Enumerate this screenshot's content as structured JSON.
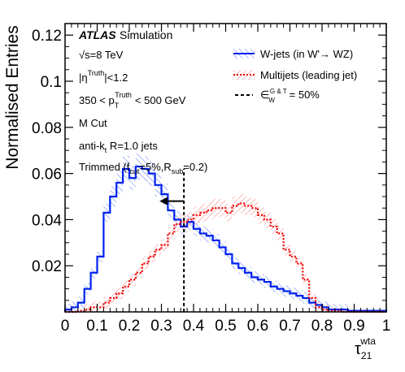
{
  "chart_data": {
    "type": "histogram",
    "ylabel": "Normalised Entries",
    "xlabel": "τ21wta",
    "xlim": [
      0,
      1
    ],
    "ylim": [
      0,
      0.125
    ],
    "x_tick_labels": [
      "0",
      "0.1",
      "0.2",
      "0.3",
      "0.4",
      "0.5",
      "0.6",
      "0.7",
      "0.8",
      "0.9",
      "1"
    ],
    "y_tick_labels": [
      "0.02",
      "0.04",
      "0.06",
      "0.08",
      "0.1",
      "0.12"
    ],
    "x_ticks": [
      0,
      0.1,
      0.2,
      0.3,
      0.4,
      0.5,
      0.6,
      0.7,
      0.8,
      0.9,
      1.0
    ],
    "y_ticks": [
      0.02,
      0.04,
      0.06,
      0.08,
      0.1,
      0.12
    ],
    "bin_edges": [
      0,
      0.02,
      0.04,
      0.06,
      0.08,
      0.1,
      0.12,
      0.14,
      0.16,
      0.18,
      0.2,
      0.22,
      0.24,
      0.26,
      0.28,
      0.3,
      0.32,
      0.34,
      0.36,
      0.38,
      0.4,
      0.42,
      0.44,
      0.46,
      0.48,
      0.5,
      0.52,
      0.54,
      0.56,
      0.58,
      0.6,
      0.62,
      0.64,
      0.66,
      0.68,
      0.7,
      0.72,
      0.74,
      0.76,
      0.78,
      0.8,
      0.82,
      0.84,
      0.86,
      0.88,
      0.9,
      0.92,
      0.94,
      0.96,
      0.98,
      1.0
    ],
    "series": [
      {
        "name": "W-jets (in W'→ WZ)",
        "color": "#0022ee",
        "style": "solid",
        "values": [
          0.001,
          0.002,
          0.004,
          0.01,
          0.017,
          0.024,
          0.043,
          0.05,
          0.056,
          0.062,
          0.058,
          0.063,
          0.062,
          0.06,
          0.055,
          0.051,
          0.044,
          0.04,
          0.037,
          0.039,
          0.036,
          0.034,
          0.033,
          0.031,
          0.028,
          0.025,
          0.021,
          0.019,
          0.017,
          0.015,
          0.014,
          0.013,
          0.011,
          0.01,
          0.009,
          0.008,
          0.007,
          0.006,
          0.004,
          0.003,
          0.002,
          0.001,
          0.001,
          0.001,
          0.0005,
          0.0005,
          0.0005,
          0.0005,
          0.0005,
          0.0005
        ]
      },
      {
        "name": "Multijets (leading jet)",
        "color": "#ee0000",
        "style": "dashed",
        "values": [
          0.0,
          0.0,
          0.0005,
          0.001,
          0.002,
          0.002,
          0.004,
          0.006,
          0.008,
          0.011,
          0.014,
          0.017,
          0.021,
          0.024,
          0.027,
          0.029,
          0.034,
          0.038,
          0.039,
          0.04,
          0.042,
          0.043,
          0.044,
          0.045,
          0.045,
          0.043,
          0.046,
          0.047,
          0.046,
          0.045,
          0.042,
          0.04,
          0.037,
          0.034,
          0.027,
          0.024,
          0.021,
          0.014,
          0.006,
          0.002,
          0.001,
          0.0005,
          0.0005,
          0.0,
          0.0,
          0.0,
          0.0,
          0.0,
          0.0,
          0.0
        ]
      }
    ],
    "cut_line": {
      "x": 0.37,
      "label": "ε_W^{G & T} = 50%",
      "arrow": "left"
    }
  },
  "labels": {
    "atlas": "ATLAS",
    "simulation": "Simulation",
    "energy": "√s=8 TeV",
    "eta_cut": "|η",
    "eta_sup": "Truth",
    "eta_end": "|<1.2",
    "pt_pre": "350 < p",
    "pt_sub": "T",
    "pt_sup": "Truth",
    "pt_end": "< 500 GeV",
    "mcut": "M Cut",
    "algo_pre": "anti-k",
    "algo_sub": "t",
    "algo_end": " R=1.0 jets",
    "trim_pre": "Trimmed (f",
    "trim_sub1": "cut",
    "trim_mid": "=5%,R",
    "trim_sub2": "sub",
    "trim_end": "=0.2)",
    "xlabel_main": "τ",
    "xlabel_sub": "21",
    "xlabel_sup": "wta"
  },
  "legend": {
    "w": "W-jets (in W'→ WZ)",
    "qcd": "Multijets (leading jet)",
    "eff_pre": "∈",
    "eff_sub": "W",
    "eff_sup": "G & T",
    "eff_end": "= 50%"
  }
}
